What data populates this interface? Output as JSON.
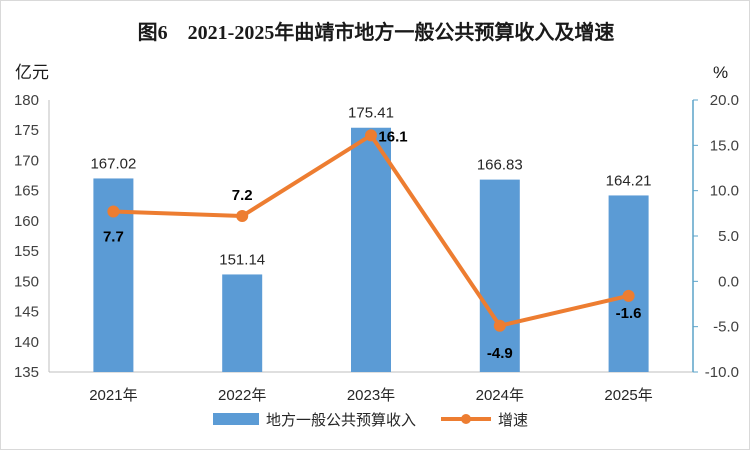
{
  "chart_data": {
    "type": "bar",
    "title": "图6　2021-2025年曲靖市地方一般公共预算收入及增速",
    "left_unit": "亿元",
    "right_unit": "%",
    "categories": [
      "2021年",
      "2022年",
      "2023年",
      "2024年",
      "2025年"
    ],
    "y_left": {
      "min": 135,
      "max": 180,
      "step": 5,
      "tick_labels": [
        "135",
        "140",
        "145",
        "150",
        "155",
        "160",
        "165",
        "170",
        "175",
        "180"
      ]
    },
    "y_right": {
      "min": -10,
      "max": 20,
      "step": 5,
      "tick_labels": [
        "-10.0",
        "-5.0",
        "0.0",
        "5.0",
        "10.0",
        "15.0",
        "20.0"
      ]
    },
    "series": [
      {
        "name": "地方一般公共预算收入",
        "type": "bar",
        "axis": "left",
        "values": [
          167.02,
          151.14,
          175.41,
          166.83,
          164.21
        ],
        "labels": [
          "167.02",
          "151.14",
          "175.41",
          "166.83",
          "164.21"
        ]
      },
      {
        "name": "增速",
        "type": "line",
        "axis": "right",
        "values": [
          7.7,
          7.2,
          16.1,
          -4.9,
          -1.6
        ],
        "labels": [
          "7.7",
          "7.2",
          "16.1",
          "-4.9",
          "-1.6"
        ]
      }
    ],
    "grid": false,
    "legend_position": "bottom",
    "colors": {
      "bar": "#5b9bd5",
      "line": "#ed7d31",
      "right_axis": "#5ba3c9",
      "left_axis": "#bfbfbf"
    }
  }
}
